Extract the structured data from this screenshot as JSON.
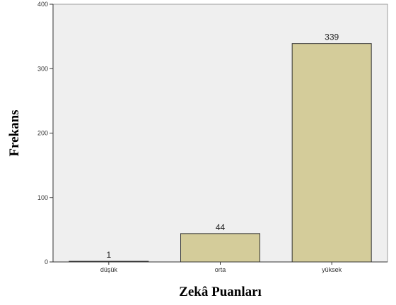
{
  "chart_data": {
    "type": "bar",
    "title": "",
    "xlabel": "Zekâ Puanları",
    "ylabel": "Frekans",
    "categories": [
      "düşük",
      "orta",
      "yüksek"
    ],
    "values": [
      1,
      44,
      339
    ],
    "data_labels": [
      "1",
      "44",
      "339"
    ],
    "ylim": [
      0,
      400
    ],
    "yticks": [
      0,
      100,
      200,
      300,
      400
    ],
    "ytick_labels": [
      "0",
      "100",
      "200",
      "300",
      "400"
    ],
    "grid": false,
    "legend": "none",
    "colors": {
      "plot_background": "#efefef",
      "bar_fill": "#d4cc9a",
      "bar_stroke": "#333333",
      "axis": "#333333"
    }
  }
}
